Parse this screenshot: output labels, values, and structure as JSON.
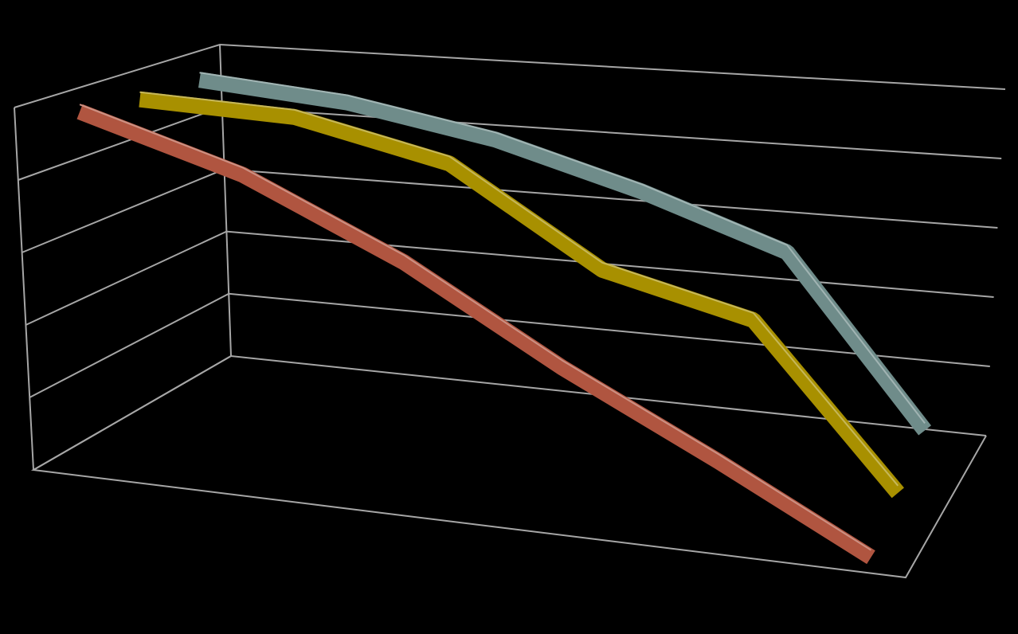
{
  "chart_data": {
    "type": "line3d",
    "categories": [
      null,
      null,
      null,
      null,
      null,
      null
    ],
    "series": [
      {
        "name": null,
        "color": "#b05540",
        "values": [
          50,
          43,
          33,
          21,
          11,
          1
        ]
      },
      {
        "name": null,
        "color": "#a89000",
        "values": [
          49,
          48,
          43,
          30,
          25,
          4
        ]
      },
      {
        "name": null,
        "color": "#6f8c8a",
        "values": [
          49,
          47,
          43,
          37,
          30,
          7
        ]
      }
    ],
    "ylim": [
      0,
      50
    ],
    "yticks": [
      0,
      10,
      20,
      30,
      40,
      50
    ],
    "grid": true
  }
}
